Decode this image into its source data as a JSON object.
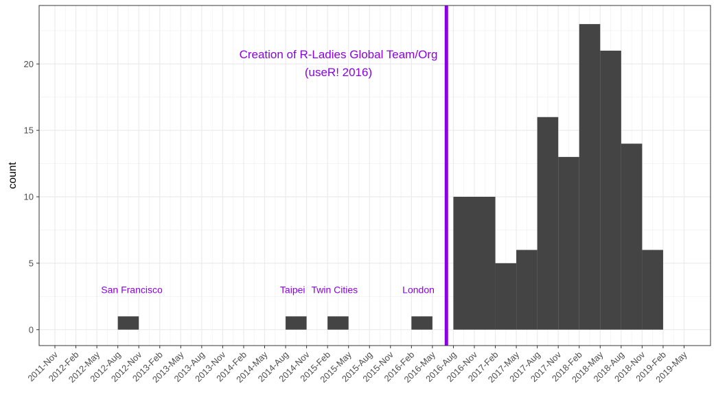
{
  "chart_data": {
    "type": "bar",
    "title": "",
    "xlabel": "",
    "ylabel": "count",
    "ylim": [
      -1.2,
      24.4
    ],
    "y_ticks": [
      0,
      5,
      10,
      15,
      20
    ],
    "grid": true,
    "legend": "none",
    "bar_color": "#444444",
    "annotation_color": "#8a00e6",
    "x_ticks": [
      "2011-Nov",
      "2012-Feb",
      "2012-May",
      "2012-Aug",
      "2012-Nov",
      "2013-Feb",
      "2013-May",
      "2013-Aug",
      "2013-Nov",
      "2014-Feb",
      "2014-May",
      "2014-Aug",
      "2014-Nov",
      "2015-Feb",
      "2015-May",
      "2015-Aug",
      "2015-Nov",
      "2016-Feb",
      "2016-May",
      "2016-Aug",
      "2016-Nov",
      "2017-Feb",
      "2017-May",
      "2017-Aug",
      "2017-Nov",
      "2018-Feb",
      "2018-May",
      "2018-Aug",
      "2018-Nov",
      "2019-Feb",
      "2019-May"
    ],
    "bins": [
      {
        "start": "2012-Aug",
        "end": "2012-Nov",
        "count": 1
      },
      {
        "start": "2014-Aug",
        "end": "2014-Nov",
        "count": 1
      },
      {
        "start": "2015-Feb",
        "end": "2015-May",
        "count": 1
      },
      {
        "start": "2016-Feb",
        "end": "2016-May",
        "count": 1
      },
      {
        "start": "2016-Aug",
        "end": "2016-Nov",
        "count": 10
      },
      {
        "start": "2016-Nov",
        "end": "2017-Feb",
        "count": 10
      },
      {
        "start": "2017-Feb",
        "end": "2017-May",
        "count": 5
      },
      {
        "start": "2017-May",
        "end": "2017-Aug",
        "count": 6
      },
      {
        "start": "2017-Aug",
        "end": "2017-Nov",
        "count": 16
      },
      {
        "start": "2017-Nov",
        "end": "2018-Feb",
        "count": 13
      },
      {
        "start": "2018-Feb",
        "end": "2018-May",
        "count": 23
      },
      {
        "start": "2018-May",
        "end": "2018-Aug",
        "count": 21
      },
      {
        "start": "2018-Aug",
        "end": "2018-Nov",
        "count": 14
      },
      {
        "start": "2018-Nov",
        "end": "2019-Feb",
        "count": 6
      }
    ],
    "reference_line": {
      "x": "2016-Jul",
      "label_lines": [
        "Creation of R-Ladies Global Team/Org",
        "(useR! 2016)"
      ]
    },
    "annotations": [
      {
        "text": "San Francisco",
        "x": "2012-Oct",
        "y": 3
      },
      {
        "text": "Taipei",
        "x": "2014-Sep",
        "y": 3
      },
      {
        "text": "Twin Cities",
        "x": "2015-Mar",
        "y": 3
      },
      {
        "text": "London",
        "x": "2016-Mar",
        "y": 3
      }
    ]
  }
}
